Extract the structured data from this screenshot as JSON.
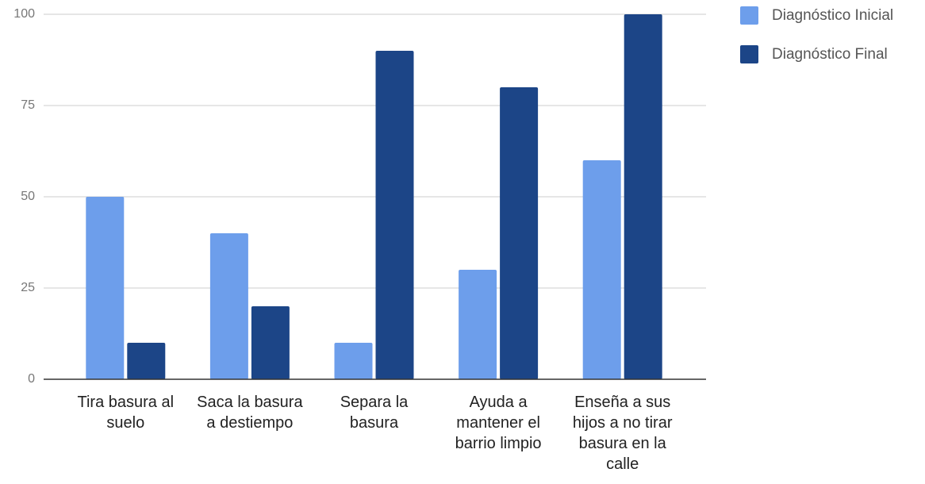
{
  "chart_data": {
    "type": "bar",
    "categories": [
      "Tira basura al suelo",
      "Saca la basura a destiempo",
      "Separa la basura",
      "Ayuda a mantener el barrio limpio",
      "Enseña a sus hijos a no tirar basura en la calle"
    ],
    "series": [
      {
        "name": "Diagnóstico Inicial",
        "color": "#6d9eeb",
        "values": [
          50,
          40,
          10,
          30,
          60
        ]
      },
      {
        "name": "Diagnóstico Final",
        "color": "#1c4587",
        "values": [
          10,
          20,
          90,
          80,
          100
        ]
      }
    ],
    "ylim": [
      0,
      100
    ],
    "yticks": [
      0,
      25,
      50,
      75,
      100
    ],
    "grid": true,
    "legend": "right"
  }
}
